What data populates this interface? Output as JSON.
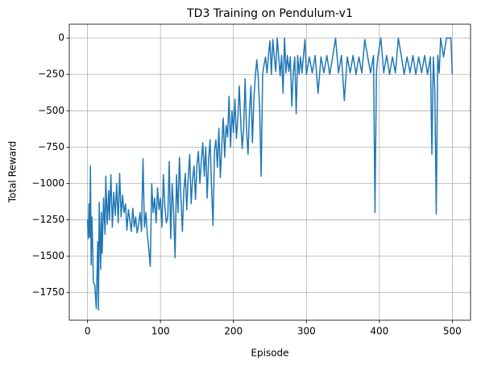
{
  "chart_data": {
    "type": "line",
    "title": "TD3 Training on Pendulum-v1",
    "xlabel": "Episode",
    "ylabel": "Total Reward",
    "xlim": [
      -25,
      525
    ],
    "xticks": [
      0,
      100,
      200,
      300,
      400,
      500
    ],
    "ylim": [
      -1940,
      95
    ],
    "yticks": [
      0,
      -250,
      -500,
      -750,
      -1000,
      -1250,
      -1500,
      -1750
    ],
    "grid": true,
    "x": [
      0,
      1,
      2,
      3,
      4,
      5,
      6,
      7,
      8,
      10,
      12,
      14,
      15,
      16,
      18,
      19,
      20,
      22,
      24,
      25,
      27,
      29,
      30,
      32,
      34,
      36,
      38,
      40,
      42,
      44,
      46,
      48,
      50,
      52,
      54,
      56,
      58,
      60,
      62,
      64,
      66,
      68,
      70,
      72,
      74,
      76,
      78,
      80,
      82,
      84,
      86,
      88,
      90,
      92,
      94,
      96,
      98,
      100,
      102,
      104,
      106,
      108,
      110,
      112,
      114,
      116,
      118,
      120,
      122,
      124,
      126,
      128,
      130,
      132,
      134,
      136,
      138,
      140,
      142,
      144,
      146,
      148,
      150,
      152,
      154,
      156,
      158,
      160,
      162,
      164,
      166,
      168,
      170,
      172,
      174,
      176,
      178,
      180,
      182,
      184,
      186,
      188,
      190,
      192,
      194,
      196,
      198,
      200,
      202,
      204,
      206,
      208,
      210,
      212,
      214,
      216,
      218,
      220,
      222,
      224,
      226,
      228,
      230,
      232,
      234,
      236,
      238,
      240,
      242,
      244,
      246,
      248,
      250,
      252,
      254,
      256,
      258,
      260,
      262,
      264,
      266,
      268,
      270,
      272,
      274,
      276,
      278,
      280,
      282,
      284,
      286,
      288,
      290,
      292,
      294,
      296,
      298,
      300,
      304,
      308,
      312,
      316,
      320,
      324,
      328,
      332,
      336,
      340,
      344,
      348,
      352,
      356,
      360,
      364,
      368,
      372,
      376,
      380,
      384,
      388,
      392,
      394,
      396,
      398,
      402,
      406,
      410,
      414,
      418,
      422,
      426,
      430,
      434,
      438,
      442,
      446,
      450,
      454,
      458,
      462,
      466,
      470,
      472,
      474,
      476,
      478,
      480,
      482,
      484,
      488,
      492,
      496,
      498,
      500
    ],
    "series": [
      {
        "name": "Total Reward",
        "color": "#1f77b4",
        "values": [
          -1250,
          -1380,
          -1140,
          -1370,
          -880,
          -1560,
          -1230,
          -1420,
          -1680,
          -1700,
          -1860,
          -1400,
          -1870,
          -1130,
          -1590,
          -1200,
          -1480,
          -1100,
          -1350,
          -950,
          -1280,
          -1050,
          -1250,
          -940,
          -1300,
          -1060,
          -1220,
          -1000,
          -1270,
          -930,
          -1230,
          -1080,
          -1200,
          -1140,
          -1320,
          -1180,
          -1250,
          -1330,
          -1170,
          -1300,
          -1230,
          -1340,
          -1280,
          -1200,
          -1330,
          -830,
          -1300,
          -1200,
          -1350,
          -1450,
          -1570,
          -1000,
          -1200,
          -1100,
          -1270,
          -1030,
          -1180,
          -1100,
          -1300,
          -940,
          -1160,
          -1270,
          -1230,
          -850,
          -1380,
          -1000,
          -1200,
          -1510,
          -940,
          -1200,
          -820,
          -1100,
          -1330,
          -1050,
          -930,
          -1180,
          -960,
          -800,
          -1140,
          -970,
          -880,
          -1110,
          -870,
          -780,
          -1000,
          -840,
          -720,
          -950,
          -750,
          -1100,
          -830,
          -700,
          -1030,
          -1290,
          -780,
          -700,
          -890,
          -620,
          -960,
          -740,
          -550,
          -820,
          -600,
          -680,
          -400,
          -750,
          -500,
          -650,
          -420,
          -690,
          -550,
          -330,
          -580,
          -760,
          -620,
          -280,
          -640,
          -800,
          -500,
          -330,
          -720,
          -420,
          -260,
          -150,
          -270,
          -500,
          -950,
          -250,
          -180,
          -130,
          -240,
          -120,
          -20,
          -250,
          -10,
          -130,
          -230,
          0,
          -130,
          -260,
          -120,
          -380,
          0,
          -240,
          -120,
          -230,
          -130,
          -470,
          -240,
          -130,
          -520,
          -120,
          -250,
          -130,
          -240,
          -120,
          -10,
          -250,
          -130,
          -240,
          -120,
          -380,
          -130,
          -240,
          -120,
          -250,
          -130,
          0,
          -240,
          -120,
          -430,
          -130,
          -240,
          -120,
          -250,
          -130,
          -240,
          -10,
          -130,
          -240,
          -120,
          -1200,
          -230,
          -130,
          0,
          -240,
          -120,
          -250,
          -130,
          -240,
          0,
          -120,
          -250,
          -130,
          -240,
          -120,
          -250,
          -130,
          -240,
          -120,
          -250,
          -130,
          -800,
          -130,
          -350,
          -1210,
          -120,
          -240,
          0,
          -130,
          0,
          0,
          0,
          -250
        ]
      }
    ]
  }
}
